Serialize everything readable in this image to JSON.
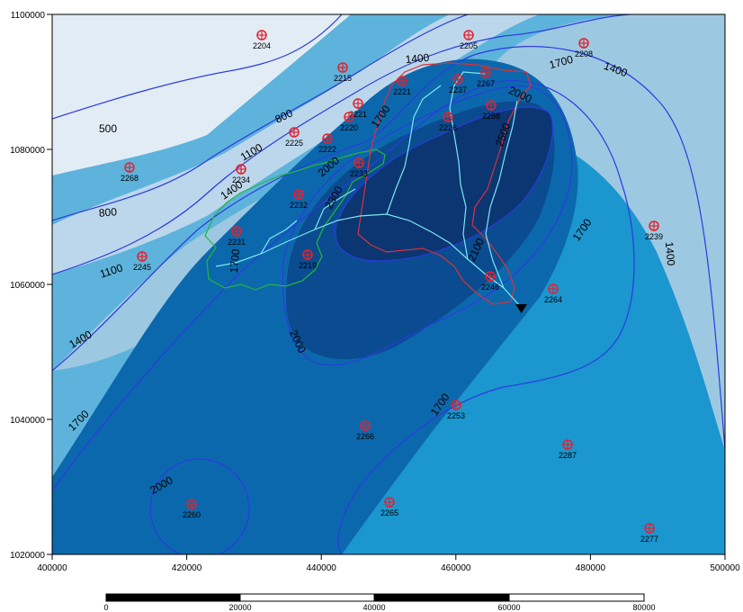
{
  "colors": {
    "band_500": "#e2ecf5",
    "band_800": "#bcd7eb",
    "band_1100": "#9dc8e1",
    "band_1400": "#5eb3dc",
    "band_1700": "#1b96cf",
    "band_2000": "#0c68ac",
    "band_2300": "#0a4c8f",
    "band_2600": "#0b3672",
    "contour_line": "#2a3be0",
    "station_marker": "#e8202a",
    "basin_red": "#d8323a",
    "basin_green": "#22b83a",
    "stream": "#7ee6f2",
    "outlet": "#000000"
  },
  "axes": {
    "x_ticks": [
      "400000",
      "420000",
      "440000",
      "460000",
      "480000",
      "500000"
    ],
    "y_ticks": [
      "1100000",
      "1080000",
      "1060000",
      "1040000",
      "1020000"
    ]
  },
  "contour_labels": [
    {
      "id": "c500",
      "text": "500"
    },
    {
      "id": "c800a",
      "text": "800"
    },
    {
      "id": "c800b",
      "text": "800"
    },
    {
      "id": "c1100a",
      "text": "1100"
    },
    {
      "id": "c1100b",
      "text": "1100"
    },
    {
      "id": "c1400a",
      "text": "1400"
    },
    {
      "id": "c1400b",
      "text": "1400"
    },
    {
      "id": "c1400c",
      "text": "1400"
    },
    {
      "id": "c1400d",
      "text": "1400"
    },
    {
      "id": "c1400e",
      "text": "1400"
    },
    {
      "id": "c1700a",
      "text": "1700"
    },
    {
      "id": "c1700b",
      "text": "1700"
    },
    {
      "id": "c1700c",
      "text": "1700"
    },
    {
      "id": "c1700d",
      "text": "1700"
    },
    {
      "id": "c1700e",
      "text": "1700"
    },
    {
      "id": "c1700f",
      "text": "1700"
    },
    {
      "id": "c2000a",
      "text": "2000"
    },
    {
      "id": "c2000b",
      "text": "2000"
    },
    {
      "id": "c2000c",
      "text": "2000"
    },
    {
      "id": "c2000d",
      "text": "2000"
    },
    {
      "id": "c2100",
      "text": "2100"
    },
    {
      "id": "c2300",
      "text": "2300"
    },
    {
      "id": "c2500",
      "text": "2500"
    }
  ],
  "stations": [
    "2204",
    "2205",
    "2208",
    "2215",
    "2221",
    "2237",
    "2267",
    "2221",
    "2220",
    "2226",
    "2288",
    "2225",
    "2222",
    "2233",
    "2268",
    "2234",
    "2232",
    "2231",
    "2219",
    "2245",
    "2239",
    "2246",
    "2264",
    "2253",
    "2266",
    "2287",
    "2260",
    "2265",
    "2277"
  ],
  "scale_bar": {
    "labels": [
      "0",
      "20000",
      "40000",
      "60000",
      "80000"
    ]
  }
}
